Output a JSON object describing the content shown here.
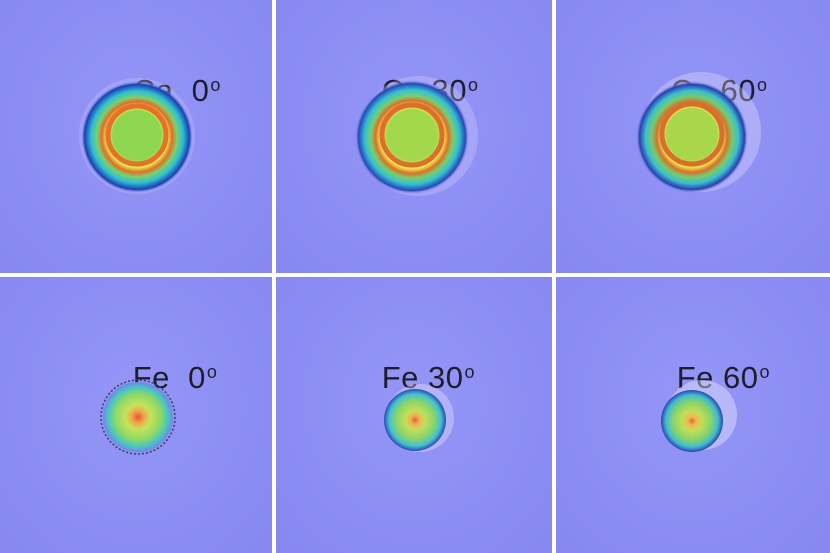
{
  "panels": [
    {
      "element": "Ca",
      "angle": "0",
      "degree_symbol": "o",
      "row": "Ca",
      "spot_type": "ring",
      "colors": {
        "background": "#8d8ef5",
        "outer": "#38c6d3",
        "ring": "#e5722a",
        "center": "#8ad64f"
      }
    },
    {
      "element": "Ca",
      "angle": "30",
      "degree_symbol": "o",
      "row": "Ca",
      "spot_type": "ring",
      "colors": {
        "background": "#8d8ef5",
        "outer": "#39c3d1",
        "ring": "#dc6f2c",
        "center": "#9ad44c"
      }
    },
    {
      "element": "Ca",
      "angle": "60",
      "degree_symbol": "o",
      "row": "Ca",
      "spot_type": "ring",
      "colors": {
        "background": "#8d8ef5",
        "outer": "#3ebfcf",
        "ring": "#d7702d",
        "center": "#a3d24b"
      }
    },
    {
      "element": "Fe",
      "angle": "0",
      "degree_symbol": "o",
      "row": "Fe",
      "spot_type": "dot",
      "colors": {
        "background": "#8d8ef5",
        "outer": "#49c6c1",
        "ring": "#b9e25a",
        "center": "#e9553d"
      }
    },
    {
      "element": "Fe",
      "angle": "30",
      "degree_symbol": "o",
      "row": "Fe",
      "spot_type": "dot",
      "colors": {
        "background": "#8d8ef5",
        "outer": "#42c1d0",
        "ring": "#aedb55",
        "center": "#e25f40"
      }
    },
    {
      "element": "Fe",
      "angle": "60",
      "degree_symbol": "o",
      "row": "Fe",
      "spot_type": "dot",
      "colors": {
        "background": "#8d8ef5",
        "outer": "#40bccf",
        "ring": "#b5dc53",
        "center": "#e06a3a"
      }
    }
  ]
}
